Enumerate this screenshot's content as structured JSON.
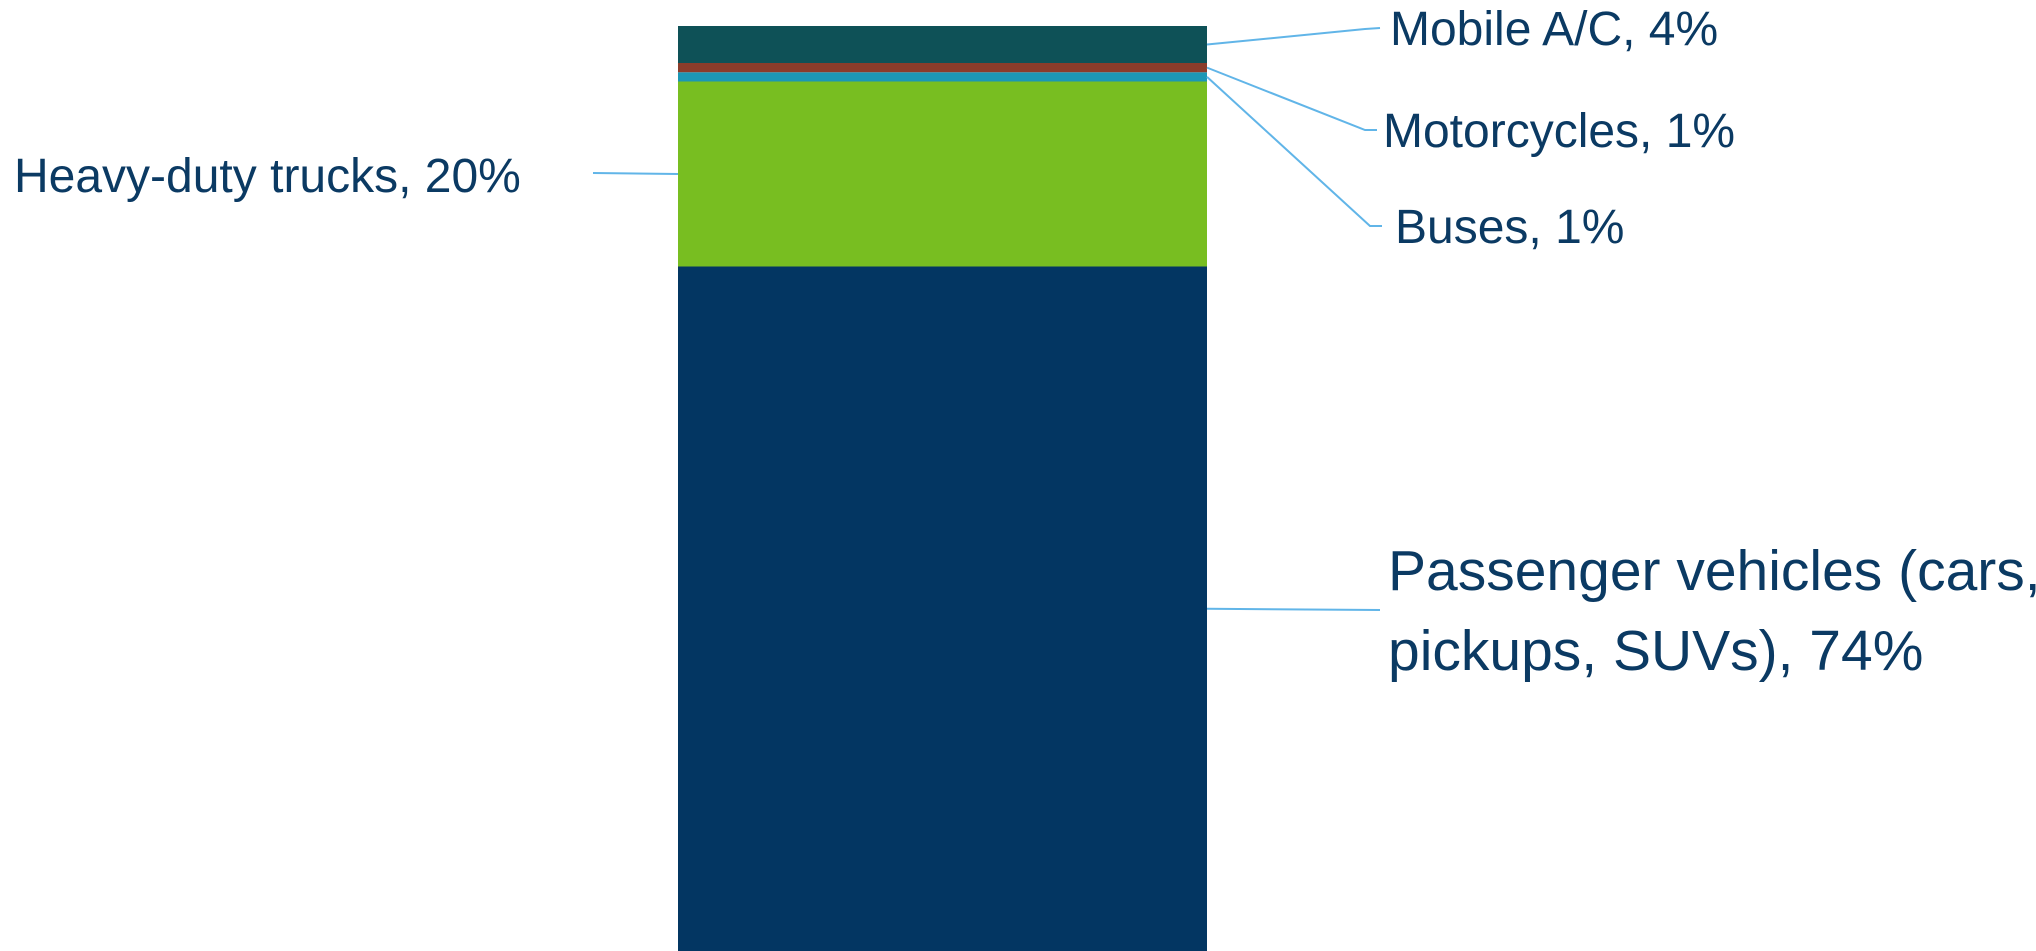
{
  "chart_data": {
    "type": "bar",
    "stacked": true,
    "title": "",
    "xlabel": "",
    "ylabel": "",
    "ylim": [
      0,
      100
    ],
    "grid": false,
    "legend": "none",
    "categories": [
      ""
    ],
    "series": [
      {
        "name": "Passenger vehicles (cars, pickups, SUVs)",
        "values": [
          74
        ],
        "label_lines": [
          "Passenger vehicles (cars,",
          "pickups, SUVs), 74%"
        ],
        "color": "#033662"
      },
      {
        "name": "Heavy-duty trucks",
        "values": [
          20
        ],
        "label_lines": [
          "Heavy-duty trucks, 20%"
        ],
        "color": "#78be21"
      },
      {
        "name": "Buses",
        "values": [
          1
        ],
        "label_lines": [
          "Buses, 1%"
        ],
        "color": "#1b97b5"
      },
      {
        "name": "Motorcycles",
        "values": [
          1
        ],
        "label_lines": [
          "Motorcycles, 1%"
        ],
        "color": "#8a3c2b"
      },
      {
        "name": "Mobile A/C",
        "values": [
          4
        ],
        "label_lines": [
          "Mobile A/C, 4%"
        ],
        "color": "#0e5157"
      }
    ]
  }
}
